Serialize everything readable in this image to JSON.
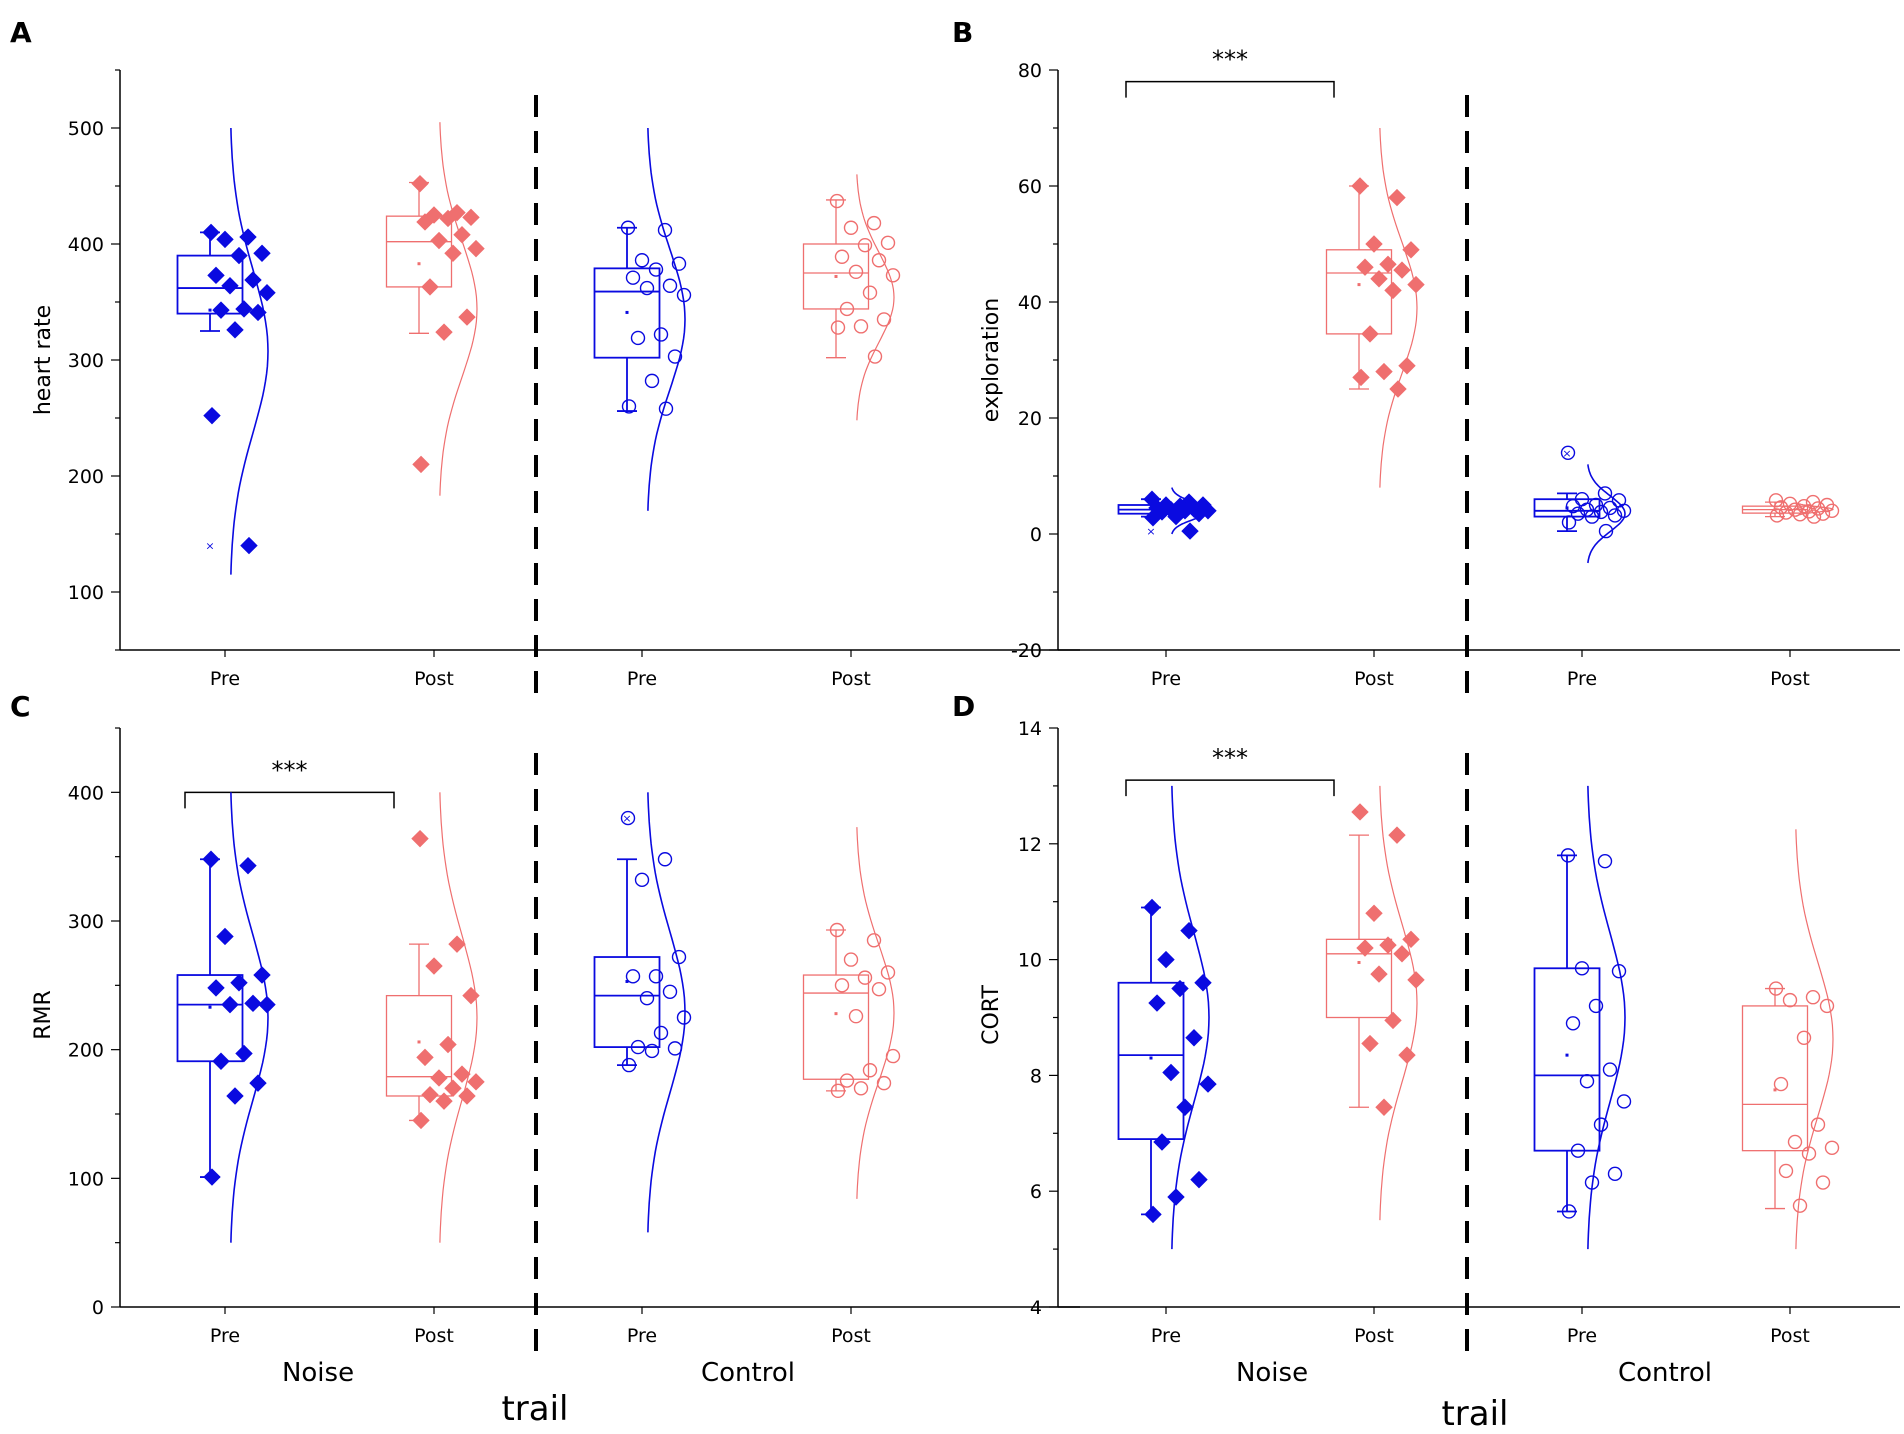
{
  "figure": {
    "group_labels": [
      "Noise",
      "Control"
    ],
    "xlabel": "trail",
    "colors": {
      "pre": "#0a0ae0",
      "post": "#ef6f6f",
      "axis": "#000000"
    }
  },
  "chart_data": [
    {
      "panel_label": "A",
      "type": "box",
      "ylabel": "heart rate",
      "ylim": [
        50,
        550
      ],
      "yticks": [
        100,
        200,
        300,
        400,
        500
      ],
      "categories": [
        "Pre",
        "Post",
        "Pre",
        "Post"
      ],
      "groups": [
        "Noise",
        "Noise",
        "Control",
        "Control"
      ],
      "box": [
        {
          "min": 325,
          "q1": 340,
          "median": 362,
          "q3": 390,
          "max": 410,
          "mean": 343,
          "outliers": [
            140
          ]
        },
        {
          "min": 323,
          "q1": 363,
          "median": 402,
          "q3": 424,
          "max": 453,
          "mean": 383,
          "outliers": [
            210
          ]
        },
        {
          "min": 256,
          "q1": 302,
          "median": 359,
          "q3": 379,
          "max": 414,
          "mean": 341,
          "outliers": []
        },
        {
          "min": 302,
          "q1": 344,
          "median": 375,
          "q3": 400,
          "max": 438,
          "mean": 372,
          "outliers": []
        }
      ],
      "points": [
        [
          410,
          406,
          404,
          392,
          390,
          373,
          369,
          364,
          358,
          344,
          343,
          341,
          326,
          252,
          140
        ],
        [
          452,
          427,
          425,
          423,
          422,
          419,
          408,
          403,
          396,
          392,
          363,
          337,
          324,
          210
        ],
        [
          414,
          412,
          386,
          383,
          378,
          371,
          364,
          362,
          356,
          322,
          319,
          303,
          282,
          260,
          258
        ],
        [
          437,
          418,
          414,
          401,
          399,
          389,
          386,
          376,
          373,
          358,
          344,
          335,
          329,
          328,
          303
        ]
      ],
      "curve_range": [
        [
          115,
          500
        ],
        [
          183,
          505
        ],
        [
          170,
          500
        ],
        [
          248,
          460
        ]
      ]
    },
    {
      "panel_label": "B",
      "type": "box",
      "ylabel": "exploration",
      "ylim": [
        -20,
        80
      ],
      "yticks": [
        -20,
        0,
        20,
        40,
        60,
        80
      ],
      "categories": [
        "Pre",
        "Post",
        "Pre",
        "Post"
      ],
      "groups": [
        "Noise",
        "Noise",
        "Control",
        "Control"
      ],
      "significance": {
        "from": 0,
        "to": 1,
        "level": 78,
        "label": "***"
      },
      "box": [
        {
          "min": 3,
          "q1": 3.5,
          "median": 4.2,
          "q3": 5,
          "max": 6,
          "mean": 4.3,
          "outliers": [
            0.5
          ]
        },
        {
          "min": 25,
          "q1": 34.5,
          "median": 45,
          "q3": 49,
          "max": 60,
          "mean": 43,
          "outliers": []
        },
        {
          "min": 0.5,
          "q1": 3,
          "median": 4,
          "q3": 6,
          "max": 7,
          "mean": 4.5,
          "outliers": [
            14
          ]
        },
        {
          "min": 3,
          "q1": 3.6,
          "median": 4.2,
          "q3": 4.8,
          "max": 5.5,
          "mean": 4.2,
          "outliers": []
        }
      ],
      "points": [
        [
          6,
          5.5,
          5,
          5,
          4.8,
          4.5,
          4.3,
          4.2,
          4,
          4,
          3.8,
          3.5,
          3,
          2.8,
          0.5
        ],
        [
          60,
          58,
          50,
          49,
          46.5,
          46,
          45.5,
          44,
          43,
          42,
          34.5,
          29,
          28,
          27,
          25
        ],
        [
          14,
          7,
          6,
          5.8,
          5,
          4.8,
          4.5,
          4.2,
          4,
          3.8,
          3.5,
          3.2,
          3,
          2,
          0.5
        ],
        [
          5.8,
          5.5,
          5.2,
          5,
          4.8,
          4.6,
          4.4,
          4.2,
          4,
          3.9,
          3.7,
          3.5,
          3.4,
          3.2,
          3
        ]
      ],
      "curve_range": [
        [
          0,
          8
        ],
        [
          8,
          70
        ],
        [
          -5,
          12
        ],
        [
          3,
          5.5
        ]
      ]
    },
    {
      "panel_label": "C",
      "type": "box",
      "ylabel": "RMR",
      "ylim": [
        0,
        450
      ],
      "yticks": [
        0,
        100,
        200,
        300,
        400
      ],
      "categories": [
        "Pre",
        "Post",
        "Pre",
        "Post"
      ],
      "groups": [
        "Noise",
        "Noise",
        "Control",
        "Control"
      ],
      "significance": {
        "from": 0,
        "to": 1,
        "level": 400,
        "label": "***"
      },
      "box": [
        {
          "min": 101,
          "q1": 191,
          "median": 235,
          "q3": 258,
          "max": 348,
          "mean": 233,
          "outliers": []
        },
        {
          "min": 145,
          "q1": 164,
          "median": 179,
          "q3": 242,
          "max": 282,
          "mean": 206,
          "outliers": [
            364
          ]
        },
        {
          "min": 188,
          "q1": 202,
          "median": 242,
          "q3": 272,
          "max": 348,
          "mean": 253,
          "outliers": [
            380
          ]
        },
        {
          "min": 168,
          "q1": 177,
          "median": 244,
          "q3": 258,
          "max": 293,
          "mean": 228,
          "outliers": []
        }
      ],
      "points": [
        [
          348,
          343,
          288,
          258,
          252,
          248,
          236,
          235,
          235,
          197,
          191,
          174,
          164,
          101
        ],
        [
          364,
          282,
          265,
          242,
          204,
          194,
          181,
          178,
          175,
          170,
          165,
          164,
          160,
          145
        ],
        [
          380,
          348,
          332,
          272,
          257,
          257,
          245,
          240,
          225,
          213,
          202,
          201,
          199,
          188
        ],
        [
          293,
          285,
          270,
          260,
          256,
          250,
          247,
          226,
          195,
          184,
          176,
          174,
          170,
          168
        ]
      ],
      "curve_range": [
        [
          50,
          400
        ],
        [
          50,
          400
        ],
        [
          58,
          400
        ],
        [
          84,
          373
        ]
      ]
    },
    {
      "panel_label": "D",
      "type": "box",
      "ylabel": "CORT",
      "ylim": [
        4,
        14
      ],
      "yticks": [
        4,
        6,
        8,
        10,
        12,
        14
      ],
      "categories": [
        "Pre",
        "Post",
        "Pre",
        "Post"
      ],
      "groups": [
        "Noise",
        "Noise",
        "Control",
        "Control"
      ],
      "significance": {
        "from": 0,
        "to": 1,
        "level": 13.1,
        "label": "***"
      },
      "box": [
        {
          "min": 5.6,
          "q1": 6.9,
          "median": 8.35,
          "q3": 9.6,
          "max": 10.9,
          "mean": 8.3,
          "outliers": []
        },
        {
          "min": 7.45,
          "q1": 9.0,
          "median": 10.1,
          "q3": 10.35,
          "max": 12.15,
          "mean": 9.95,
          "outliers": [
            12.55
          ]
        },
        {
          "min": 5.65,
          "q1": 6.7,
          "median": 8.0,
          "q3": 9.85,
          "max": 11.8,
          "mean": 8.35,
          "outliers": []
        },
        {
          "min": 5.7,
          "q1": 6.7,
          "median": 7.5,
          "q3": 9.2,
          "max": 9.5,
          "mean": 7.75,
          "outliers": []
        }
      ],
      "points": [
        [
          10.9,
          10.5,
          10.0,
          9.6,
          9.5,
          9.25,
          8.65,
          8.05,
          7.85,
          7.45,
          6.85,
          6.2,
          5.9,
          5.6
        ],
        [
          12.55,
          12.15,
          10.8,
          10.35,
          10.25,
          10.2,
          10.1,
          9.75,
          9.65,
          8.95,
          8.55,
          8.35,
          7.45
        ],
        [
          11.8,
          11.7,
          9.85,
          9.8,
          9.2,
          8.9,
          8.1,
          7.9,
          7.55,
          7.15,
          6.7,
          6.3,
          6.15,
          5.65
        ],
        [
          9.5,
          9.35,
          9.3,
          9.2,
          8.65,
          7.85,
          7.15,
          6.85,
          6.75,
          6.65,
          6.35,
          6.15,
          5.75
        ]
      ],
      "curve_range": [
        [
          5,
          13
        ],
        [
          5.5,
          13
        ],
        [
          5,
          13
        ],
        [
          5,
          12.25
        ]
      ]
    }
  ]
}
